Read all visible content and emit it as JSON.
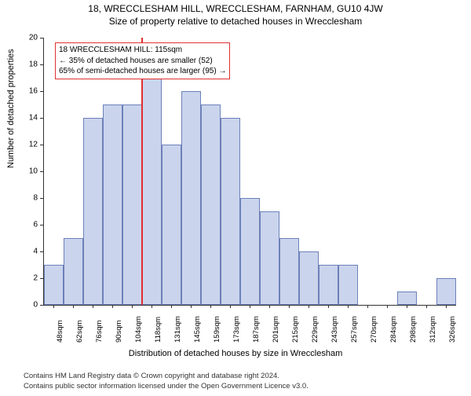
{
  "titles": {
    "main": "18, WRECCLESHAM HILL, WRECCLESHAM, FARNHAM, GU10 4JW",
    "sub": "Size of property relative to detached houses in Wrecclesham"
  },
  "axis": {
    "ylabel": "Number of detached properties",
    "xlabel": "Distribution of detached houses by size in Wrecclesham"
  },
  "y": {
    "min": 0,
    "max": 20,
    "step": 2,
    "ticks": [
      0,
      2,
      4,
      6,
      8,
      10,
      12,
      14,
      16,
      18,
      20
    ]
  },
  "x": {
    "labels": [
      "48sqm",
      "62sqm",
      "76sqm",
      "90sqm",
      "104sqm",
      "118sqm",
      "131sqm",
      "145sqm",
      "159sqm",
      "173sqm",
      "187sqm",
      "201sqm",
      "215sqm",
      "229sqm",
      "243sqm",
      "257sqm",
      "270sqm",
      "284sqm",
      "298sqm",
      "312sqm",
      "326sqm"
    ]
  },
  "bars": {
    "values": [
      3,
      5,
      14,
      15,
      15,
      18,
      12,
      16,
      15,
      14,
      8,
      7,
      5,
      4,
      3,
      3,
      0,
      0,
      1,
      0,
      2
    ],
    "fill": "#cad4ec",
    "border": "#6d80b9",
    "width_ratio": 1.0
  },
  "marker": {
    "index": 5,
    "color": "#e03030"
  },
  "annotation": {
    "line1": "18 WRECCLESHAM HILL: 115sqm",
    "line2": "← 35% of detached houses are smaller (52)",
    "line3": "65% of semi-detached houses are larger (95) →",
    "border_color": "#e03030"
  },
  "footer": {
    "line1": "Contains HM Land Registry data © Crown copyright and database right 2024.",
    "line2": "Contains public sector information licensed under the Open Government Licence v3.0."
  },
  "style": {
    "background": "#ffffff"
  }
}
